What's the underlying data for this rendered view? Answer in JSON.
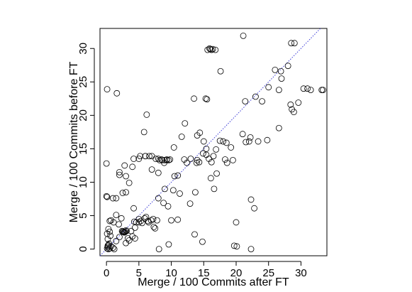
{
  "chart_data": {
    "type": "scatter",
    "title": "",
    "xlabel": "Merge / 100 Commits after FT",
    "ylabel": "Merge / 100 Commits before FT",
    "xlim": [
      -1,
      34
    ],
    "ylim": [
      -1,
      33
    ],
    "xticks": [
      0,
      5,
      10,
      15,
      20,
      25,
      30
    ],
    "yticks": [
      0,
      5,
      10,
      15,
      20,
      25,
      30
    ],
    "xtick_labels": [
      "0",
      "5",
      "10",
      "15",
      "20",
      "25",
      "30"
    ],
    "ytick_labels": [
      "0",
      "5",
      "10",
      "15",
      "20",
      "25",
      "30"
    ],
    "grid": false,
    "marker": "open-circle",
    "point_color": "#000000",
    "reference_line": {
      "type": "y=x",
      "style": "dotted",
      "color": "#3b3bd6"
    },
    "x": [
      0.1,
      0.2,
      0.3,
      0.4,
      0.5,
      0.7,
      1.0,
      1.2,
      0.2,
      0.1,
      0.3,
      0.6,
      0.5,
      1.5,
      0.3,
      0.2,
      0.5,
      1.1,
      1.5,
      1.9,
      2.3,
      2.6,
      2.9,
      3.1,
      3.3,
      3.0,
      2.5,
      2.8,
      3.5,
      3.8,
      4.0,
      4.3,
      4.6,
      2.4,
      2.7,
      3.0,
      2.0,
      4.4,
      5.3,
      5.9,
      6.5,
      7.2,
      7.5,
      8.1,
      9.0,
      9.6,
      10.0,
      11.0,
      1.5,
      2.5,
      3.0,
      3.5,
      4.2,
      5.0,
      5.5,
      6.1,
      6.9,
      7.3,
      8.0,
      8.8,
      9.5,
      0.0,
      0.1,
      0.7,
      1.0,
      2.0,
      3.0,
      4.0,
      5.0,
      6.0,
      7.0,
      8.0,
      0.0,
      2.0,
      2.8,
      4.2,
      5.2,
      6.0,
      6.6,
      7.0,
      7.6,
      8.0,
      8.5,
      9.3,
      9.8,
      10.5,
      11.0,
      11.6,
      12.4,
      12.0,
      8.2,
      8.6,
      9.0,
      9.3,
      9.6,
      8.9,
      0.1,
      1.6,
      5.8,
      6.2,
      10.4,
      12.1,
      13.0,
      13.5,
      14.0,
      14.4,
      15.0,
      15.5,
      16.1,
      16.6,
      17.0,
      17.5,
      18.0,
      18.5,
      19.2,
      19.5,
      20.0,
      13.7,
      14.0,
      15.4,
      15.8,
      16.2,
      16.5,
      17.6,
      18.3,
      21.0,
      21.5,
      22.0,
      23.4,
      24.8,
      25.0,
      26.6,
      26.9,
      28.4,
      28.6,
      28.9,
      28.0,
      29.6,
      30.4,
      31.0,
      31.5,
      33.2,
      33.4,
      15.6,
      16.0,
      16.4,
      16.8,
      15.9,
      16.2,
      21.1,
      28.5,
      29.0,
      12.9,
      14.8,
      22.3,
      22.8,
      19.7,
      20.1,
      22.3,
      10.3,
      11.3,
      13.6,
      13.9,
      14.3,
      14.9,
      15.3,
      16.9,
      18.6,
      21.4,
      22.2,
      24.0,
      26.0,
      27.0,
      15.4,
      26.6,
      23.0,
      7.8,
      6.4,
      5.0,
      4.4
    ],
    "y": [
      0.1,
      0.3,
      0.6,
      0.8,
      0.1,
      0.4,
      0.2,
      0.0,
      1.5,
      2.3,
      3.0,
      2.0,
      2.6,
      1.2,
      0.0,
      0.5,
      4.2,
      4.0,
      5.1,
      3.7,
      4.6,
      2.6,
      2.6,
      2.7,
      1.6,
      0.9,
      2.6,
      2.5,
      1.3,
      2.7,
      1.9,
      4.1,
      4.0,
      2.7,
      2.5,
      2.8,
      1.8,
      3.2,
      4.2,
      4.6,
      4.0,
      4.5,
      3.1,
      0.0,
      9.0,
      0.7,
      4.3,
      4.4,
      7.6,
      8.4,
      8.5,
      9.9,
      6.1,
      4.0,
      3.9,
      4.8,
      4.3,
      3.3,
      7.6,
      6.9,
      6.4,
      7.9,
      7.8,
      4.3,
      7.6,
      11.5,
      10.9,
      12.3,
      13.5,
      13.9,
      11.9,
      11.4,
      12.8,
      11.1,
      12.5,
      13.5,
      13.9,
      13.9,
      13.9,
      13.9,
      13.5,
      13.5,
      13.4,
      13.4,
      13.4,
      10.9,
      11.0,
      16.8,
      12.9,
      13.4,
      13.3,
      13.3,
      13.3,
      13.3,
      13.3,
      12.9,
      23.9,
      23.3,
      17.5,
      20.1,
      15.2,
      18.8,
      13.5,
      22.5,
      17.0,
      17.4,
      16.1,
      22.4,
      10.6,
      9.0,
      11.3,
      16.2,
      16.1,
      15.9,
      15.2,
      13.3,
      4.0,
      8.5,
      13.3,
      14.1,
      13.5,
      13.0,
      13.9,
      26.6,
      13.4,
      17.2,
      16.0,
      16.1,
      16.1,
      16.3,
      24.2,
      18.1,
      26.6,
      21.6,
      20.9,
      20.5,
      27.4,
      21.9,
      24.0,
      24.0,
      23.8,
      23.8,
      23.8,
      29.8,
      29.9,
      29.9,
      29.8,
      30.0,
      29.8,
      31.9,
      30.8,
      30.8,
      6.8,
      1.1,
      7.4,
      6.1,
      0.5,
      0.4,
      0.0,
      8.8,
      8.3,
      2.2,
      12.9,
      13.0,
      14.3,
      22.5,
      14.9,
      12.9,
      22.1,
      16.7,
      22.1,
      26.8,
      25.5,
      15.0,
      23.8,
      22.8,
      4.3,
      4.2,
      4.5,
      1.6
    ]
  }
}
